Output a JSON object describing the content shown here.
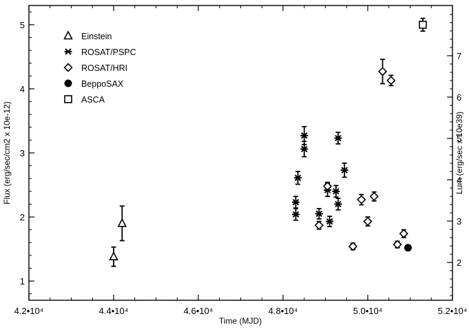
{
  "chart_data": {
    "type": "scatter",
    "title": "",
    "xlabel": "Time (MJD)",
    "ylabel": "Flux (erg/sec/cm2 x 10e-12)",
    "y2label": "Lum (erg/sec x 10e39)",
    "xlim": [
      42000,
      52000
    ],
    "ylim": [
      0.7,
      5.3
    ],
    "y2lim_per_flux": 1.55,
    "x_ticks": [
      {
        "value": 42000,
        "label": "4.2•10⁴"
      },
      {
        "value": 44000,
        "label": "4.4•10⁴"
      },
      {
        "value": 46000,
        "label": "4.6•10⁴"
      },
      {
        "value": 48000,
        "label": "4.8•10⁴"
      },
      {
        "value": 50000,
        "label": "5.0•10⁴"
      },
      {
        "value": 52000,
        "label": "5.2•10⁴"
      }
    ],
    "y_ticks": [
      {
        "value": 1,
        "label": "1"
      },
      {
        "value": 2,
        "label": "2"
      },
      {
        "value": 3,
        "label": "3"
      },
      {
        "value": 4,
        "label": "4"
      },
      {
        "value": 5,
        "label": "5"
      }
    ],
    "y2_ticks": [
      {
        "value": 2,
        "label": "2"
      },
      {
        "value": 3,
        "label": "3"
      },
      {
        "value": 4,
        "label": "4"
      },
      {
        "value": 5,
        "label": "5"
      },
      {
        "value": 6,
        "label": "6"
      },
      {
        "value": 7,
        "label": "7"
      }
    ],
    "grid": false,
    "legend_position": "top-left",
    "series": [
      {
        "name": "Einstein",
        "marker": "triangle",
        "points": [
          {
            "x": 44000,
            "y": 1.38,
            "err": 0.15
          },
          {
            "x": 44200,
            "y": 1.9,
            "err": 0.27
          }
        ]
      },
      {
        "name": "ROSAT/PSPC",
        "marker": "asterisk",
        "points": [
          {
            "x": 48300,
            "y": 2.04,
            "err": 0.09
          },
          {
            "x": 48300,
            "y": 2.23,
            "err": 0.09
          },
          {
            "x": 48350,
            "y": 2.61,
            "err": 0.1
          },
          {
            "x": 48500,
            "y": 3.06,
            "err": 0.12
          },
          {
            "x": 48500,
            "y": 3.27,
            "err": 0.14
          },
          {
            "x": 48850,
            "y": 2.05,
            "err": 0.08
          },
          {
            "x": 49100,
            "y": 1.93,
            "err": 0.08
          },
          {
            "x": 49050,
            "y": 2.42,
            "err": 0.1
          },
          {
            "x": 49250,
            "y": 2.4,
            "err": 0.09
          },
          {
            "x": 49300,
            "y": 2.2,
            "err": 0.09
          },
          {
            "x": 49300,
            "y": 3.23,
            "err": 0.09
          },
          {
            "x": 49450,
            "y": 2.73,
            "err": 0.11
          }
        ]
      },
      {
        "name": "ROSAT/HRI",
        "marker": "diamond",
        "points": [
          {
            "x": 48850,
            "y": 1.87,
            "err": 0.06
          },
          {
            "x": 49050,
            "y": 2.48,
            "err": 0.06
          },
          {
            "x": 49650,
            "y": 1.54,
            "err": 0.05
          },
          {
            "x": 49850,
            "y": 2.27,
            "err": 0.08
          },
          {
            "x": 50000,
            "y": 1.93,
            "err": 0.07
          },
          {
            "x": 50150,
            "y": 2.32,
            "err": 0.07
          },
          {
            "x": 50350,
            "y": 4.27,
            "err": 0.19
          },
          {
            "x": 50550,
            "y": 4.13,
            "err": 0.08
          },
          {
            "x": 50700,
            "y": 1.57,
            "err": 0.05
          },
          {
            "x": 50850,
            "y": 1.74,
            "err": 0.06
          }
        ]
      },
      {
        "name": "BeppoSAX",
        "marker": "circle",
        "points": [
          {
            "x": 50950,
            "y": 1.52,
            "err": 0
          }
        ]
      },
      {
        "name": "ASCA",
        "marker": "square",
        "points": [
          {
            "x": 51300,
            "y": 5.0,
            "err": 0.1
          }
        ]
      }
    ]
  }
}
